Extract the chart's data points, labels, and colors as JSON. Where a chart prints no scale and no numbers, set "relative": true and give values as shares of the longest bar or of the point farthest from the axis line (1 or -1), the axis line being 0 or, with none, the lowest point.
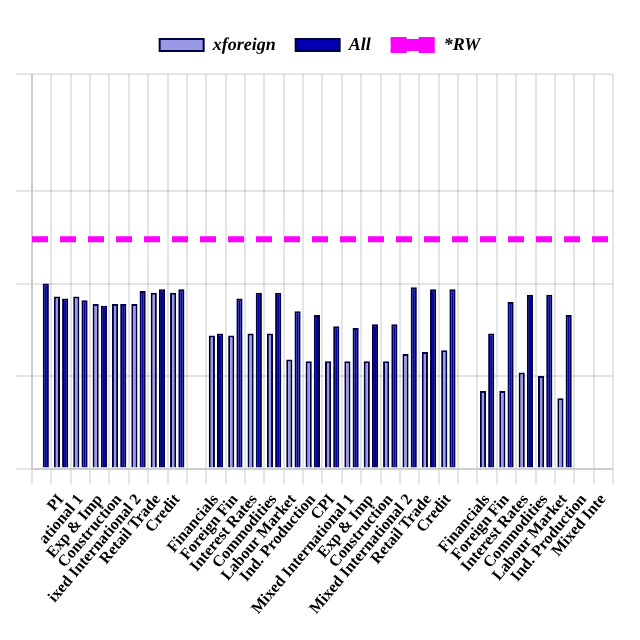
{
  "chart_data": {
    "type": "bar",
    "relative": true,
    "categories": [
      null,
      "PI",
      "ational 1",
      "Exp & Imp",
      "Construction",
      "ixed International 2",
      "Retail Trade",
      "Credit",
      null,
      "Financials",
      "Foreign Fin",
      "Interest Rates",
      "Commodities",
      "Labour Market",
      "Ind. Production",
      "CPI",
      "Mixed International 1",
      "Exp & Imp",
      "Construction",
      "Mixed International 2",
      "Retail Trade",
      "Credit",
      null,
      "Financials",
      "Foreign Fin",
      "Interest Rates",
      "Commodities",
      "Labour Market",
      "Ind. Production",
      "Mixed Inte"
    ],
    "series": [
      {
        "name": "xforeign",
        "color": "#9999e6",
        "values": [
          null,
          0.93,
          0.93,
          0.89,
          0.89,
          0.89,
          0.95,
          0.95,
          null,
          0.72,
          0.72,
          0.73,
          0.73,
          0.59,
          0.58,
          0.58,
          0.58,
          0.58,
          0.58,
          0.62,
          0.63,
          0.64,
          null,
          0.42,
          0.42,
          0.52,
          0.5,
          0.38,
          null,
          null
        ]
      },
      {
        "name": "All",
        "color": "#0000b0",
        "values": [
          1.0,
          0.92,
          0.91,
          0.88,
          0.89,
          0.96,
          0.97,
          0.97,
          null,
          0.73,
          0.92,
          0.95,
          0.95,
          0.85,
          0.83,
          0.77,
          0.76,
          0.78,
          0.78,
          0.98,
          0.97,
          0.97,
          null,
          0.73,
          0.9,
          0.94,
          0.94,
          0.83,
          null,
          null
        ]
      }
    ],
    "ref_lines": [
      {
        "axis": "y",
        "value": 1.24,
        "label": "*RW",
        "color": "#ff00ff",
        "line_style": "dashed"
      }
    ],
    "legend": "top",
    "grid": true
  }
}
